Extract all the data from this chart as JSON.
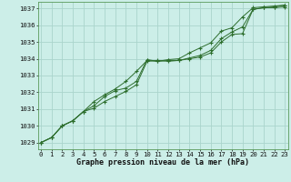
{
  "title": "Graphe pression niveau de la mer (hPa)",
  "bg_color": "#cceee8",
  "grid_color": "#aad4cc",
  "line_color": "#2d6e2d",
  "marker_color": "#2d6e2d",
  "xlim": [
    -0.3,
    23.3
  ],
  "ylim": [
    1028.6,
    1037.4
  ],
  "yticks": [
    1029,
    1030,
    1031,
    1032,
    1033,
    1034,
    1035,
    1036,
    1037
  ],
  "xticks": [
    0,
    1,
    2,
    3,
    4,
    5,
    6,
    7,
    8,
    9,
    10,
    11,
    12,
    13,
    14,
    15,
    16,
    17,
    18,
    19,
    20,
    21,
    22,
    23
  ],
  "series": [
    [
      1029.0,
      1029.3,
      1030.0,
      1030.3,
      1030.85,
      1031.05,
      1031.45,
      1031.75,
      1032.05,
      1032.45,
      1033.85,
      1033.9,
      1033.85,
      1033.9,
      1034.0,
      1034.1,
      1034.35,
      1035.0,
      1035.45,
      1035.5,
      1036.95,
      1037.05,
      1037.05,
      1037.1
    ],
    [
      1029.0,
      1029.3,
      1030.0,
      1030.3,
      1030.85,
      1031.2,
      1031.75,
      1032.1,
      1032.25,
      1032.65,
      1033.95,
      1033.85,
      1033.9,
      1033.9,
      1034.05,
      1034.2,
      1034.5,
      1035.2,
      1035.6,
      1035.9,
      1036.95,
      1037.05,
      1037.1,
      1037.2
    ],
    [
      1029.0,
      1029.3,
      1030.0,
      1030.3,
      1030.85,
      1031.45,
      1031.85,
      1032.2,
      1032.65,
      1033.25,
      1033.9,
      1033.85,
      1033.95,
      1034.0,
      1034.35,
      1034.65,
      1034.95,
      1035.65,
      1035.85,
      1036.5,
      1037.05,
      1037.1,
      1037.15,
      1037.2
    ]
  ],
  "title_fontsize": 6.0,
  "tick_fontsize": 5.2
}
